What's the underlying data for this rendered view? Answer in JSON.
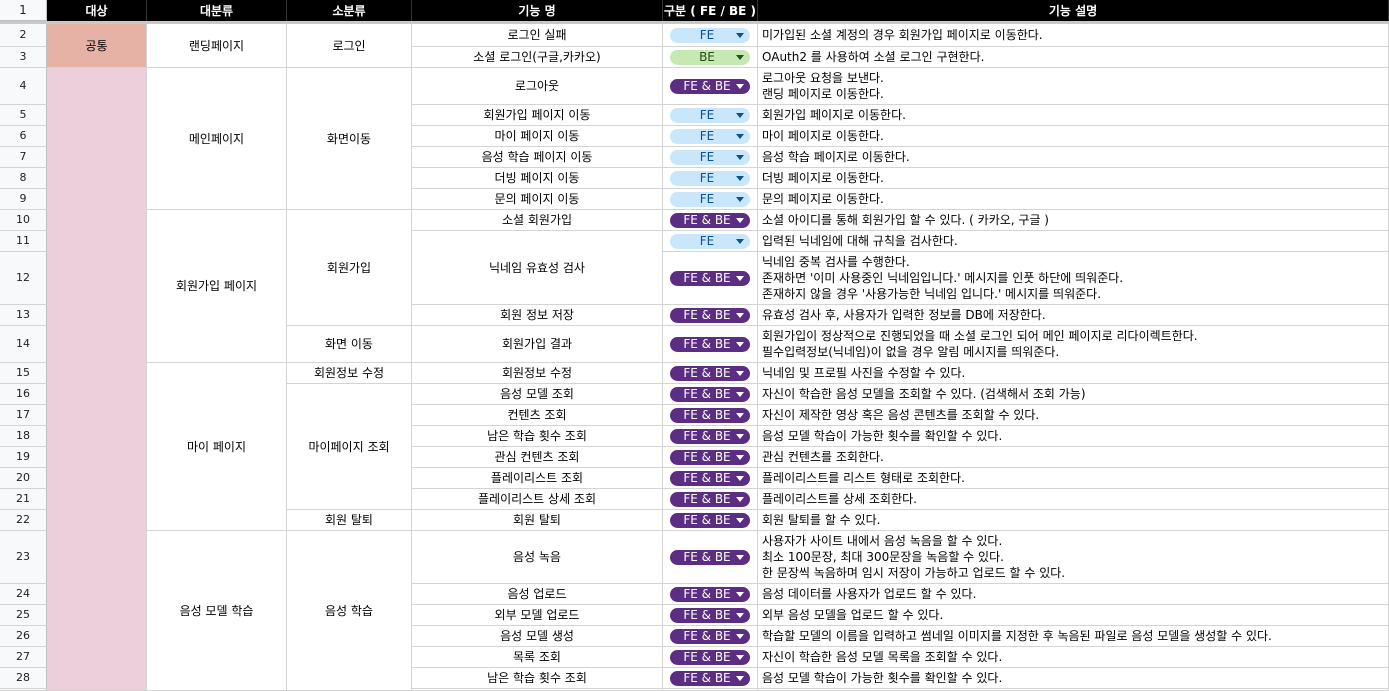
{
  "header": {
    "row_number": "1",
    "target": "대상",
    "major": "대분류",
    "minor": "소분류",
    "feature": "기능 명",
    "type": "구분 ( FE / BE )",
    "description": "기능 설명"
  },
  "chips": {
    "fe": "FE",
    "be": "BE",
    "febe": "FE & BE"
  },
  "groups": {
    "target_common": "공통",
    "target_blank": "",
    "major_landing": "랜딩페이지",
    "major_main": "메인페이지",
    "major_signup": "회원가입 페이지",
    "major_mypage": "마이 페이지",
    "major_voice": "음성 모델 학습",
    "minor_login": "로그인",
    "minor_nav": "화면이동",
    "minor_signup": "회원가입",
    "minor_nav2": "화면 이동",
    "minor_edit": "회원정보 수정",
    "minor_mylookup": "마이페이지 조회",
    "minor_withdraw": "회원 탈퇴",
    "minor_voice": "음성 학습"
  },
  "rows": [
    {
      "num": "2",
      "feature": "로그인 실패",
      "type": "fe",
      "desc": "미가입된 소셜 계정의 경우 회원가입 페이지로 이동한다."
    },
    {
      "num": "3",
      "feature": "소셜 로그인(구글,카카오)",
      "type": "be",
      "desc": "OAuth2 를 사용하여 소셜 로그인 구현한다."
    },
    {
      "num": "4",
      "feature": "로그아웃",
      "type": "febe",
      "desc": "로그아웃 요청을 보낸다.\n랜딩 페이지로 이동한다."
    },
    {
      "num": "5",
      "feature": "회원가입 페이지 이동",
      "type": "fe",
      "desc": "회원가입 페이지로 이동한다."
    },
    {
      "num": "6",
      "feature": "마이 페이지 이동",
      "type": "fe",
      "desc": "마이 페이지로 이동한다."
    },
    {
      "num": "7",
      "feature": "음성 학습 페이지 이동",
      "type": "fe",
      "desc": "음성 학습 페이지로 이동한다."
    },
    {
      "num": "8",
      "feature": "더빙 페이지 이동",
      "type": "fe",
      "desc": "더빙 페이지로 이동한다."
    },
    {
      "num": "9",
      "feature": "문의 페이지 이동",
      "type": "fe",
      "desc": "문의 페이지로 이동한다."
    },
    {
      "num": "10",
      "feature": "소셜 회원가입",
      "type": "febe",
      "desc": "소셜 아이디를 통해 회원가입 할 수 있다. ( 카카오, 구글 )"
    },
    {
      "num": "11",
      "feature": "닉네임 유효성 검사",
      "type": "fe",
      "desc": "입력된 닉네임에 대해 규칙을 검사한다."
    },
    {
      "num": "12",
      "feature": "",
      "type": "febe",
      "desc": "닉네임 중복 검사를 수행한다.\n존재하면 '이미 사용중인 닉네임입니다.' 메시지를 인풋 하단에 띄워준다.\n존재하지 않을 경우 '사용가능한 닉네임 입니다.' 메시지를 띄워준다."
    },
    {
      "num": "13",
      "feature": "회원 정보 저장",
      "type": "febe",
      "desc": "유효성 검사 후, 사용자가 입력한 정보를 DB에 저장한다."
    },
    {
      "num": "14",
      "feature": "회원가입 결과",
      "type": "febe",
      "desc": "회원가입이 정상적으로 진행되었을 때 소셜 로그인 되어 메인 페이지로 리다이렉트한다.\n필수입력정보(닉네임)이 없을 경우 알림 메시지를 띄워준다."
    },
    {
      "num": "15",
      "feature": "회원정보 수정",
      "type": "febe",
      "desc": "닉네임 및 프로필 사진을 수정할 수 있다."
    },
    {
      "num": "16",
      "feature": "음성 모델 조회",
      "type": "febe",
      "desc": "자신이 학습한 음성 모델을 조회할 수 있다. (검색해서 조회 가능)"
    },
    {
      "num": "17",
      "feature": "컨텐츠 조회",
      "type": "febe",
      "desc": "자신이 제작한 영상 혹은 음성 콘텐츠를 조회할 수 있다."
    },
    {
      "num": "18",
      "feature": "남은 학습 횟수 조회",
      "type": "febe",
      "desc": "음성 모델 학습이 가능한 횟수를 확인할 수 있다."
    },
    {
      "num": "19",
      "feature": "관심 컨텐츠 조회",
      "type": "febe",
      "desc": "관심 컨텐츠를 조회한다."
    },
    {
      "num": "20",
      "feature": "플레이리스트 조회",
      "type": "febe",
      "desc": "플레이리스트를 리스트 형태로 조회한다."
    },
    {
      "num": "21",
      "feature": "플레이리스트 상세 조회",
      "type": "febe",
      "desc": "플레이리스트를 상세 조회한다."
    },
    {
      "num": "22",
      "feature": "회원 탈퇴",
      "type": "febe",
      "desc": "회원 탈퇴를 할 수 있다."
    },
    {
      "num": "23",
      "feature": "음성 녹음",
      "type": "febe",
      "desc": "사용자가 사이트 내에서 음성 녹음을 할 수 있다.\n최소 100문장, 최대 300문장을 녹음할 수 있다.\n한 문장씩 녹음하며 임시 저장이 가능하고 업로드 할 수 있다."
    },
    {
      "num": "24",
      "feature": "음성 업로드",
      "type": "febe",
      "desc": "음성 데이터를 사용자가 업로드 할 수 있다."
    },
    {
      "num": "25",
      "feature": "외부 모델 업로드",
      "type": "febe",
      "desc": "외부 음성 모델을 업로드 할 수 있다."
    },
    {
      "num": "26",
      "feature": "음성 모델 생성",
      "type": "febe",
      "desc": "학습할 모델의 이름을 입력하고 썸네일 이미지를 지정한 후 녹음된 파일로 음성 모델을 생성할 수 있다."
    },
    {
      "num": "27",
      "feature": "목록 조회",
      "type": "febe",
      "desc": "자신이 학습한 음성 모델 목록을 조회할 수 있다."
    },
    {
      "num": "28",
      "feature": "남은 학습 횟수 조회",
      "type": "febe",
      "desc": "음성 모델 학습이 가능한 횟수를 확인할 수 있다."
    }
  ]
}
